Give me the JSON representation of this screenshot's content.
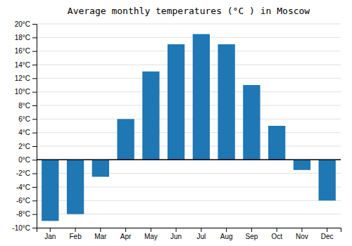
{
  "chart_data": {
    "type": "bar",
    "title": "Average monthly temperatures (°C ) in Moscow",
    "categories": [
      "Jan",
      "Feb",
      "Mar",
      "Apr",
      "May",
      "Jun",
      "Jul",
      "Aug",
      "Sep",
      "Oct",
      "Nov",
      "Dec"
    ],
    "values": [
      -9,
      -8,
      -2.5,
      6,
      13,
      17,
      18.5,
      17,
      11,
      5,
      -1.5,
      -6
    ],
    "ylim": [
      -10,
      20
    ],
    "yticks": [
      {
        "value": -10,
        "label": "-10°C"
      },
      {
        "value": -8,
        "label": "-8°C"
      },
      {
        "value": -6,
        "label": "-6°C"
      },
      {
        "value": -4,
        "label": "-4°C"
      },
      {
        "value": -2,
        "label": "-2°C"
      },
      {
        "value": 0,
        "label": "0°C"
      },
      {
        "value": 2,
        "label": "2°C"
      },
      {
        "value": 4,
        "label": "4°C"
      },
      {
        "value": 6,
        "label": "6°C"
      },
      {
        "value": 8,
        "label": "8°C"
      },
      {
        "value": 10,
        "label": "10°C"
      },
      {
        "value": 12,
        "label": "12°C"
      },
      {
        "value": 14,
        "label": "14°C"
      },
      {
        "value": 16,
        "label": "16°C"
      },
      {
        "value": 18,
        "label": "18°C"
      },
      {
        "value": 20,
        "label": "20°C"
      }
    ],
    "grid": true
  }
}
